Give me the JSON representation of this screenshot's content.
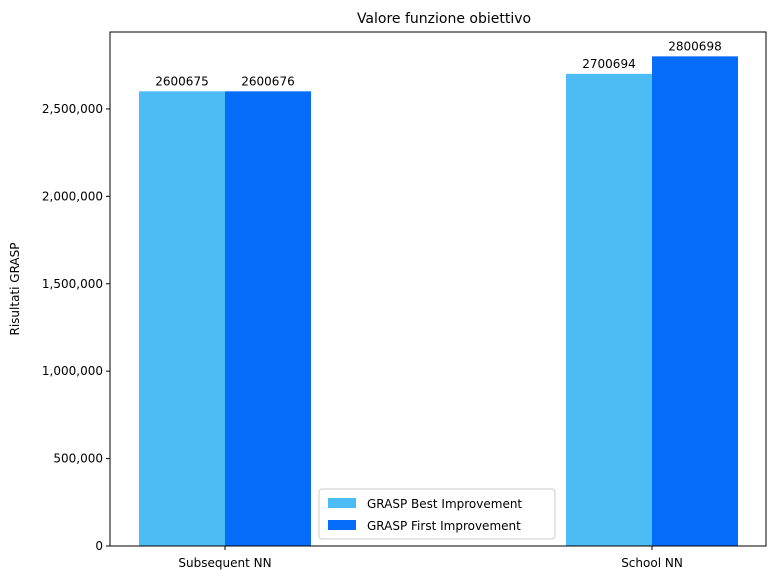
{
  "chart_data": {
    "type": "bar",
    "title": "Valore funzione obiettivo",
    "ylabel": "Risultati GRASP",
    "xlabel": "",
    "categories": [
      "Subsequent NN",
      "School NN"
    ],
    "series": [
      {
        "name": "GRASP Best Improvement",
        "values": [
          2600675,
          2700694
        ],
        "labels": [
          "2600675",
          "2700694"
        ],
        "color": "#4bbcf4"
      },
      {
        "name": "GRASP First Improvement",
        "values": [
          2600676,
          2800698
        ],
        "labels": [
          "2600676",
          "2800698"
        ],
        "color": "#066cfa"
      }
    ],
    "ylim": [
      0,
      2940000
    ],
    "yticks": [
      0,
      500000,
      1000000,
      1500000,
      2000000,
      2500000
    ],
    "ytick_labels": [
      "0",
      "500,000",
      "1,000,000",
      "1,500,000",
      "2,000,000",
      "2,500,000"
    ],
    "grid": false,
    "legend_position": "bottom-center"
  }
}
